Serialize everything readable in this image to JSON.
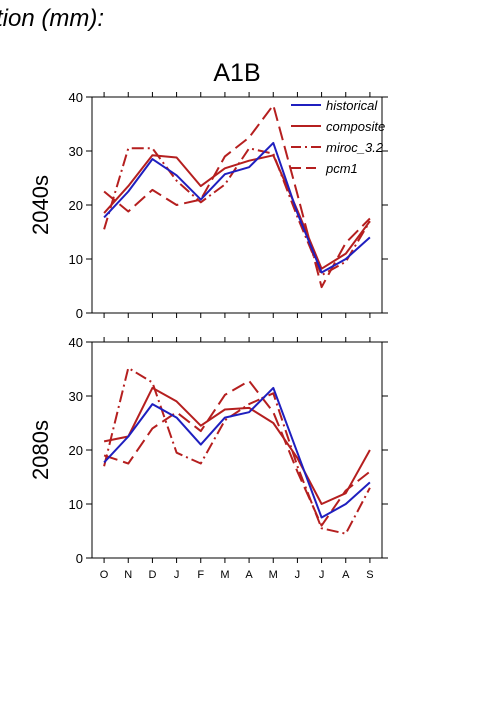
{
  "page_title": "tion (mm):",
  "chart_data": {
    "type": "line",
    "title": "A1B",
    "categories": [
      "O",
      "N",
      "D",
      "J",
      "F",
      "M",
      "A",
      "M",
      "J",
      "J",
      "A",
      "S"
    ],
    "ylim": [
      0,
      40
    ],
    "yticks": [
      0,
      10,
      20,
      30,
      40
    ],
    "grid": false,
    "legend": {
      "placement": "top-right",
      "entries": [
        "historical",
        "composite",
        "miroc_3.2",
        "pcm1"
      ]
    },
    "colors": {
      "historical": "#1f1fbf",
      "models": "#b51f1f"
    },
    "panels": [
      {
        "label": "2040s",
        "series": [
          {
            "name": "historical",
            "style": "solid",
            "color": "#1f1fbf",
            "values": [
              17.7,
              22.5,
              28.5,
              25.5,
              21.0,
              25.7,
              27.0,
              31.5,
              18.5,
              7.5,
              10.0,
              14.0
            ]
          },
          {
            "name": "composite",
            "style": "solid",
            "color": "#b51f1f",
            "values": [
              18.5,
              23.5,
              29.2,
              28.8,
              23.5,
              26.8,
              28.2,
              29.2,
              19.0,
              8.2,
              11.0,
              17.0
            ]
          },
          {
            "name": "miroc_3.2",
            "style": "dashdot",
            "color": "#b51f1f",
            "values": [
              15.5,
              30.5,
              30.5,
              24.5,
              20.5,
              23.8,
              30.5,
              29.5,
              17.8,
              7.0,
              9.5,
              17.0
            ]
          },
          {
            "name": "pcm1",
            "style": "dashed",
            "color": "#b51f1f",
            "values": [
              22.5,
              18.8,
              22.8,
              20.0,
              21.0,
              29.0,
              32.5,
              38.5,
              22.0,
              4.8,
              13.0,
              17.5
            ]
          }
        ]
      },
      {
        "label": "2080s",
        "series": [
          {
            "name": "historical",
            "style": "solid",
            "color": "#1f1fbf",
            "values": [
              17.7,
              22.5,
              28.5,
              26.0,
              21.0,
              26.0,
              27.0,
              31.5,
              19.5,
              7.5,
              10.0,
              14.0
            ]
          },
          {
            "name": "composite",
            "style": "solid",
            "color": "#b51f1f",
            "values": [
              21.6,
              22.5,
              31.5,
              29.0,
              24.5,
              27.5,
              27.8,
              25.0,
              18.5,
              10.0,
              12.0,
              20.0
            ]
          },
          {
            "name": "miroc_3.2",
            "style": "dashdot",
            "color": "#b51f1f",
            "values": [
              17.0,
              35.2,
              32.5,
              19.5,
              17.5,
              25.5,
              28.5,
              30.5,
              17.0,
              5.5,
              4.5,
              13.0
            ]
          },
          {
            "name": "pcm1",
            "style": "dashed",
            "color": "#b51f1f",
            "values": [
              19.0,
              17.5,
              24.0,
              27.0,
              23.5,
              30.2,
              32.8,
              27.0,
              16.0,
              6.0,
              12.5,
              16.0
            ]
          }
        ]
      }
    ]
  }
}
